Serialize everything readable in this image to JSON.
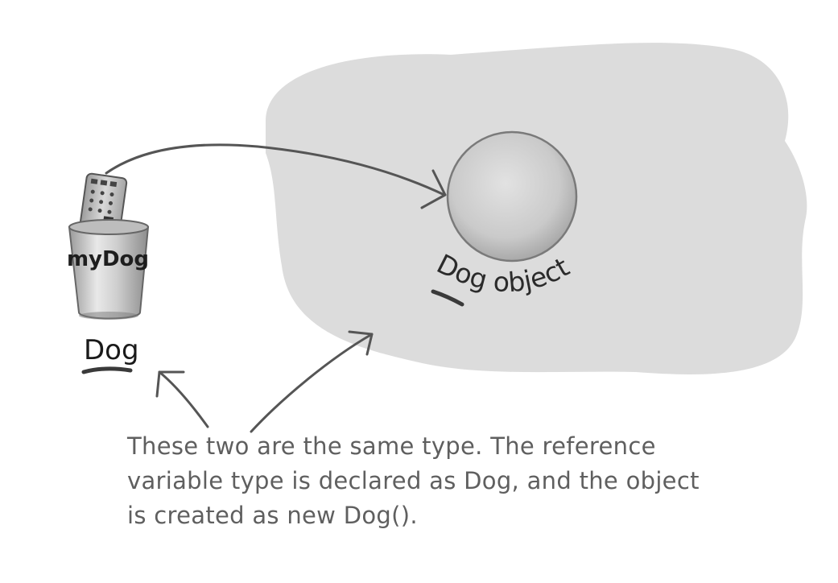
{
  "diagram": {
    "variable_name": "myDog",
    "variable_type": "Dog",
    "object_label": "Dog object",
    "caption": {
      "line1": "These two are the same type. The reference",
      "line2": "variable type is declared as Dog, and the object",
      "line3": "is created as new Dog()."
    }
  },
  "colors": {
    "heap": "#dcdcdc",
    "object_fill": "#c9c9c9",
    "stroke": "#555555",
    "caption_text": "#5f5f5f"
  }
}
